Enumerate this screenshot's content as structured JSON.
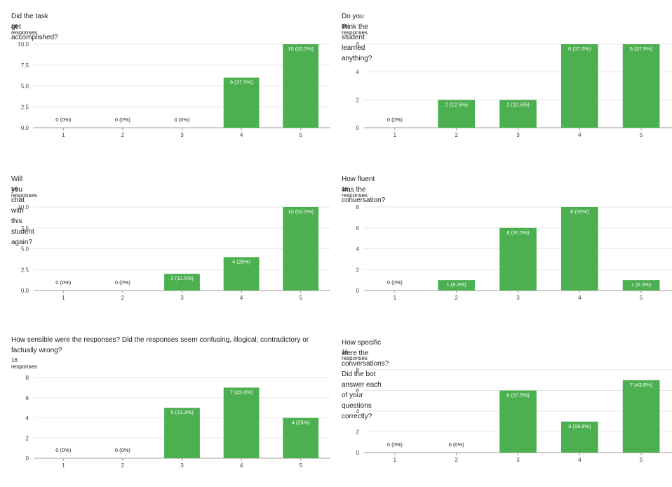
{
  "bar_color": "#4caf50",
  "chart_data": [
    {
      "type": "bar",
      "title": "Did the task get accomplished?",
      "responses": "16 responses",
      "categories": [
        "1",
        "2",
        "3",
        "4",
        "5"
      ],
      "values": [
        0,
        0,
        0,
        6,
        10
      ],
      "labels": [
        "0 (0%)",
        "0 (0%)",
        "0 (0%)",
        "6 (37.5%)",
        "10 (62.5%)"
      ],
      "yticks": [
        "0.0",
        "2.5",
        "5.0",
        "7.5",
        "10.0"
      ],
      "ylim": [
        0,
        10
      ]
    },
    {
      "type": "bar",
      "title": "Do you think the student learned anything?",
      "responses": "16 responses",
      "categories": [
        "1",
        "2",
        "3",
        "4",
        "5"
      ],
      "values": [
        0,
        2,
        2,
        6,
        6
      ],
      "labels": [
        "0 (0%)",
        "2 (12.5%)",
        "2 (12.5%)",
        "6 (37.5%)",
        "6 (37.5%)"
      ],
      "yticks": [
        "0",
        "2",
        "4",
        "6"
      ],
      "ylim": [
        0,
        6
      ]
    },
    {
      "type": "bar",
      "title": "Will you chat with this student again?",
      "responses": "16 responses",
      "categories": [
        "1",
        "2",
        "3",
        "4",
        "5"
      ],
      "values": [
        0,
        0,
        2,
        4,
        10
      ],
      "labels": [
        "0 (0%)",
        "0 (0%)",
        "2 (12.5%)",
        "4 (25%)",
        "10 (62.5%)"
      ],
      "yticks": [
        "0.0",
        "2.5",
        "5.0",
        "7.5",
        "10.0"
      ],
      "ylim": [
        0,
        10
      ]
    },
    {
      "type": "bar",
      "title": "How fluent was the conversation?",
      "responses": "16 responses",
      "categories": [
        "1",
        "2",
        "3",
        "4",
        "5"
      ],
      "values": [
        0,
        1,
        6,
        8,
        1
      ],
      "labels": [
        "0 (0%)",
        "1 (6.3%)",
        "6 (37.5%)",
        "8 (50%)",
        "1 (6.3%)"
      ],
      "yticks": [
        "0",
        "2",
        "4",
        "6",
        "8"
      ],
      "ylim": [
        0,
        8
      ]
    },
    {
      "type": "bar",
      "title": "How sensible were the responses? Did the responses seem confusing, illogical, contradictory or\nfactually wrong?",
      "responses": "16 responses",
      "categories": [
        "1",
        "2",
        "3",
        "4",
        "5"
      ],
      "values": [
        0,
        0,
        5,
        7,
        4
      ],
      "labels": [
        "0 (0%)",
        "0 (0%)",
        "5 (31.3%)",
        "7 (43.8%)",
        "4 (25%)"
      ],
      "yticks": [
        "0",
        "2",
        "4",
        "6",
        "8"
      ],
      "ylim": [
        0,
        8
      ]
    },
    {
      "type": "bar",
      "title": "How specific were the conversations? Did the bot answer each of your questions correctly?",
      "responses": "16 responses",
      "categories": [
        "1",
        "2",
        "3",
        "4",
        "5"
      ],
      "values": [
        0,
        0,
        6,
        3,
        7
      ],
      "labels": [
        "0 (0%)",
        "0 (0%)",
        "6 (37.5%)",
        "3 (18.8%)",
        "7 (43.8%)"
      ],
      "yticks": [
        "0",
        "2",
        "4",
        "6",
        "8"
      ],
      "ylim": [
        0,
        8
      ]
    }
  ]
}
